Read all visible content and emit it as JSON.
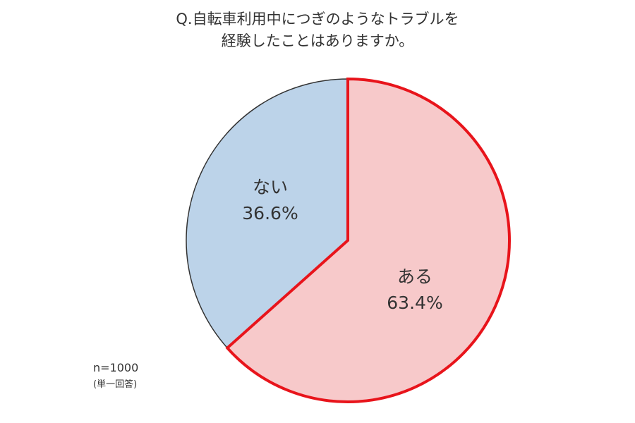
{
  "chart_data": {
    "type": "pie",
    "title": [
      "Q.自転車利用中につぎのようなトラブルを",
      "経験したことはありますか。"
    ],
    "slices": [
      {
        "label": "ある",
        "value": 63.4,
        "value_label": "63.4%",
        "color": "#f7c9ca",
        "stroke": "#e8141b",
        "highlighted": true
      },
      {
        "label": "ない",
        "value": 36.6,
        "value_label": "36.6%",
        "color": "#bcd3e9",
        "stroke": "#333333",
        "highlighted": false
      }
    ],
    "start": "top (12 o'clock), clockwise",
    "notes": [
      "n=1000",
      "(単一回答)"
    ]
  }
}
